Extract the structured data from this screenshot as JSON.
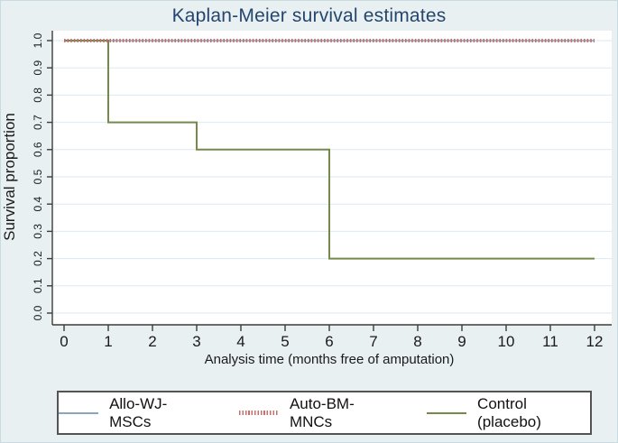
{
  "chart_data": {
    "type": "line",
    "subtype": "kaplan-meier-step",
    "title": "Kaplan-Meier survival estimates",
    "xlabel": "Analysis time (months free of amputation)",
    "ylabel": "Survival proportion",
    "xlim": [
      0,
      12
    ],
    "ylim": [
      0.0,
      1.0
    ],
    "x_ticks": [
      "0",
      "1",
      "2",
      "3",
      "4",
      "5",
      "6",
      "7",
      "8",
      "9",
      "10",
      "11",
      "12"
    ],
    "y_ticks": [
      "0.0",
      "0.1",
      "0.2",
      "0.3",
      "0.4",
      "0.5",
      "0.6",
      "0.7",
      "0.8",
      "0.9",
      "1.0"
    ],
    "grid": "horizontal",
    "legend_position": "bottom",
    "series": [
      {
        "name": "Allo-WJ-MSCs",
        "color": "#8aa5bf",
        "line_style": "solid",
        "line_width": 1.6,
        "points": [
          [
            0,
            1.0
          ],
          [
            12,
            1.0
          ]
        ]
      },
      {
        "name": "Auto-BM-MNCs",
        "color": "#c4706f",
        "line_style": "dotted",
        "line_width": 4,
        "points": [
          [
            0,
            1.0
          ],
          [
            12,
            1.0
          ]
        ]
      },
      {
        "name": "Control (placebo)",
        "color": "#75894a",
        "line_style": "solid",
        "line_width": 2,
        "points": [
          [
            0,
            1.0
          ],
          [
            1,
            1.0
          ],
          [
            1,
            0.7
          ],
          [
            3,
            0.7
          ],
          [
            3,
            0.6
          ],
          [
            6,
            0.6
          ],
          [
            6,
            0.2
          ],
          [
            12,
            0.2
          ]
        ]
      }
    ]
  },
  "colors": {
    "figure_background": "#e9f0f2",
    "plot_background": "#ffffff",
    "gridline": "#dbe9ef",
    "axis": "#3c3c3c",
    "title_text": "#25466f",
    "tick_text": "#1a1a1a",
    "legend_border": "#545454"
  }
}
